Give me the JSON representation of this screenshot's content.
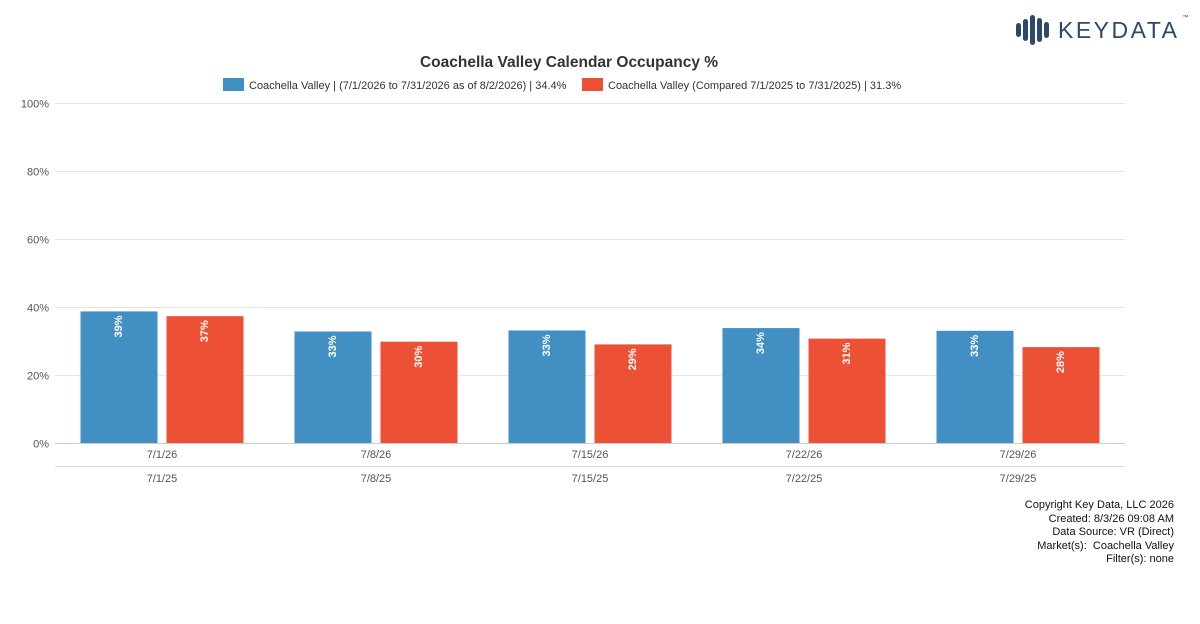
{
  "brand": {
    "name": "KEYDATA",
    "trademark": "™",
    "color": "#2b4a6b",
    "icon": "bar-chart-logo-icon"
  },
  "chart_data": {
    "type": "bar",
    "title": "Coachella Valley Calendar Occupancy %",
    "xlabel": "",
    "ylabel": "",
    "categories": [
      "7/1/26",
      "7/8/26",
      "7/15/26",
      "7/22/26",
      "7/29/26"
    ],
    "categories_secondary": [
      "7/1/25",
      "7/8/25",
      "7/15/25",
      "7/22/25",
      "7/29/25"
    ],
    "series": [
      {
        "name": "Coachella Valley | (7/1/2026 to 7/31/2026 as of 8/2/2026) | 34.4%",
        "color": "#428fc4",
        "values": [
          38.7,
          32.8,
          33.1,
          33.8,
          33.0
        ],
        "labels": [
          "39%",
          "33%",
          "33%",
          "34%",
          "33%"
        ]
      },
      {
        "name": "Coachella Valley (Compared 7/1/2025 to 7/31/2025) | 31.3%",
        "color": "#ec5136",
        "values": [
          37.3,
          29.8,
          29.0,
          30.7,
          28.2
        ],
        "labels": [
          "37%",
          "30%",
          "29%",
          "31%",
          "28%"
        ]
      }
    ],
    "ylim": [
      0,
      100
    ],
    "yticks": [
      0,
      20,
      40,
      60,
      80,
      100
    ],
    "ytick_labels": [
      "0%",
      "20%",
      "40%",
      "60%",
      "80%",
      "100%"
    ],
    "grid": true,
    "legend_position": "top-center"
  },
  "footer": {
    "copyright": "Copyright Key Data, LLC 2026",
    "created": "Created: 8/3/26 09:08 AM",
    "data_source": "Data Source: VR (Direct)",
    "markets": "Market(s):  Coachella Valley",
    "filters": "Filter(s): none"
  }
}
